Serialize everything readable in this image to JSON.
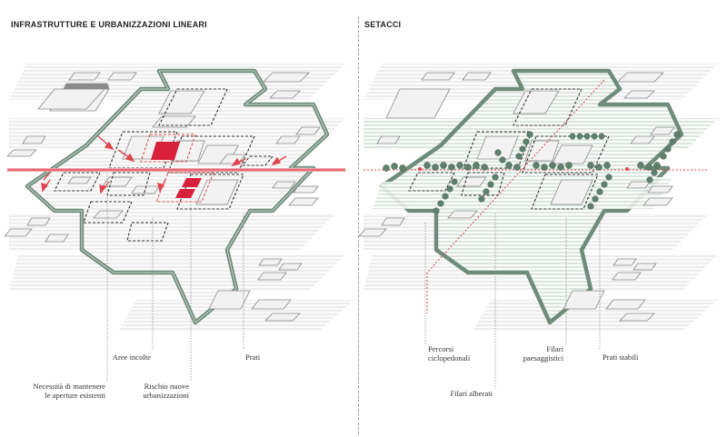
{
  "panels": {
    "left": {
      "title": "INFRASTRUTTURE E URBANIZZAZIONI LINEARI",
      "labels": {
        "aree_incolte": "Aree incolte",
        "prati": "Prati",
        "necessita_1": "Necessità di mantenere",
        "necessita_2": "le aperture esistenti",
        "rischio_1": "Rischio nuove",
        "rischio_2": "urbanizzazioni"
      }
    },
    "right": {
      "title": "SETACCI",
      "labels": {
        "percorsi_1": "Percorsi",
        "percorsi_2": "ciclopedonali",
        "filari_p_1": "Filari",
        "filari_p_2": "paesaggistici",
        "prati_stabili": "Prati stabili",
        "filari_alberati": "Filari alberati"
      }
    }
  },
  "colors": {
    "green_band": "#6f8c7b",
    "red": "#e0454f",
    "red_fill": "#d8203a",
    "building": "#f2f2f2",
    "shadow": "#8a8a8a",
    "hatch": "#c8c8c8",
    "tree": "#5f7f6c"
  }
}
